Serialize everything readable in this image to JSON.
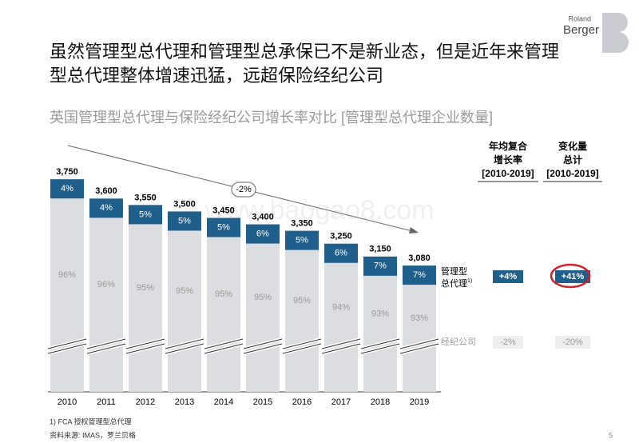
{
  "header": {
    "title_lines": [
      "虽然管理型总代理和管理型总承保已不是新业态，但是近年来管理",
      "型总代理整体增速迅猛，远超保险经纪公司"
    ],
    "logo_top": "Roland",
    "logo_bottom": "Berger",
    "watermark": "www.baogao8.com"
  },
  "chart_data": {
    "type": "bar",
    "title": "英国管理型总代理与保险经纪公司增长率对比 [管理型总代理企业数量]",
    "categories": [
      "2010",
      "2011",
      "2012",
      "2013",
      "2014",
      "2015",
      "2016",
      "2017",
      "2018",
      "2019"
    ],
    "values": [
      3750,
      3600,
      3550,
      3500,
      3450,
      3400,
      3350,
      3250,
      3150,
      3080
    ],
    "value_labels": [
      "3,750",
      "3,600",
      "3,550",
      "3,500",
      "3,450",
      "3,400",
      "3,350",
      "3,250",
      "3,150",
      "3,080"
    ],
    "color": "#dcdde0",
    "ylim": [
      2100,
      3900
    ],
    "series": [
      {
        "name": "管理型总代理",
        "footnote_marker": "1)",
        "color": "#1f5f8b",
        "values": [
          4,
          4,
          5,
          5,
          5,
          6,
          5,
          6,
          7,
          7
        ],
        "value_labels": [
          "4%",
          "4%",
          "5%",
          "5%",
          "5%",
          "6%",
          "5%",
          "6%",
          "7%",
          "7%"
        ]
      },
      {
        "name": "经纪公司",
        "color": "#9a9a9a",
        "values": [
          96,
          96,
          95,
          95,
          95,
          95,
          95,
          94,
          93,
          93
        ],
        "value_labels": [
          "96%",
          "96%",
          "95%",
          "95%",
          "95%",
          "95%",
          "95%",
          "94%",
          "93%",
          "93%"
        ]
      }
    ],
    "trend_annotation": "-2%"
  },
  "side_table": {
    "columns": [
      {
        "header_lines": [
          "年均复合",
          "增长率",
          "[2010-2019]"
        ],
        "values": [
          "+4%",
          "-2%"
        ]
      },
      {
        "header_lines": [
          "变化量",
          "总计",
          "[2010-2019]"
        ],
        "values": [
          "+41%",
          "-20%"
        ]
      }
    ]
  },
  "footer": {
    "footnote": "1) FCA 授权管理型总代理",
    "source": "资料来源: IMAS，罗兰贝格",
    "page": "5"
  }
}
